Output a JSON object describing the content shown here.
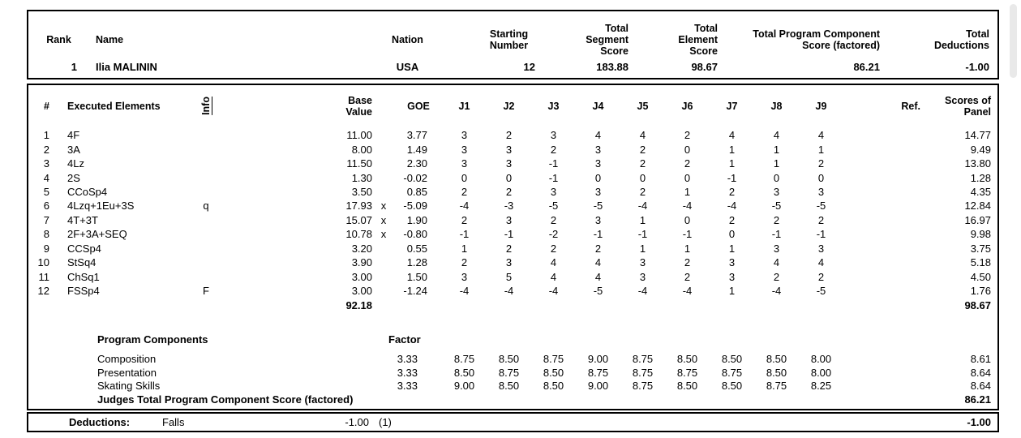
{
  "competitor_header": {
    "col_rank": "Rank",
    "col_name": "Name",
    "col_nation": "Nation",
    "col_starting_number": "Starting\nNumber",
    "col_total_segment_score": "Total\nSegment\nScore",
    "col_total_element_score": "Total\nElement\nScore",
    "col_total_program_component_score": "Total Program Component\nScore (factored)",
    "col_total_deductions": "Total Deductions",
    "rank": "1",
    "name": "Ilia MALININ",
    "nation": "USA",
    "starting_number": "12",
    "total_segment_score": "183.88",
    "total_element_score": "98.67",
    "total_program_component_score": "86.21",
    "total_deductions": "-1.00"
  },
  "elements_table": {
    "col_num": "#",
    "col_executed_elements": "Executed Elements",
    "col_info": "Info",
    "col_base_value": "Base\nValue",
    "col_goe": "GOE",
    "col_judges": [
      "J1",
      "J2",
      "J3",
      "J4",
      "J5",
      "J6",
      "J7",
      "J8",
      "J9"
    ],
    "col_ref": "Ref.",
    "col_scores_of_panel": "Scores of\nPanel",
    "rows": [
      {
        "num": "1",
        "name": "4F",
        "info": "",
        "base_value": "11.00",
        "x": "",
        "goe": "3.77",
        "judges": [
          "3",
          "2",
          "3",
          "4",
          "4",
          "2",
          "4",
          "4",
          "4"
        ],
        "ref": "",
        "panel": "14.77"
      },
      {
        "num": "2",
        "name": "3A",
        "info": "",
        "base_value": "8.00",
        "x": "",
        "goe": "1.49",
        "judges": [
          "3",
          "3",
          "2",
          "3",
          "2",
          "0",
          "1",
          "1",
          "1"
        ],
        "ref": "",
        "panel": "9.49"
      },
      {
        "num": "3",
        "name": "4Lz",
        "info": "",
        "base_value": "11.50",
        "x": "",
        "goe": "2.30",
        "judges": [
          "3",
          "3",
          "-1",
          "3",
          "2",
          "2",
          "1",
          "1",
          "2"
        ],
        "ref": "",
        "panel": "13.80"
      },
      {
        "num": "4",
        "name": "2S",
        "info": "",
        "base_value": "1.30",
        "x": "",
        "goe": "-0.02",
        "judges": [
          "0",
          "0",
          "-1",
          "0",
          "0",
          "0",
          "-1",
          "0",
          "0"
        ],
        "ref": "",
        "panel": "1.28"
      },
      {
        "num": "5",
        "name": "CCoSp4",
        "info": "",
        "base_value": "3.50",
        "x": "",
        "goe": "0.85",
        "judges": [
          "2",
          "2",
          "3",
          "3",
          "2",
          "1",
          "2",
          "3",
          "3"
        ],
        "ref": "",
        "panel": "4.35"
      },
      {
        "num": "6",
        "name": "4Lzq+1Eu+3S",
        "info": "q",
        "base_value": "17.93",
        "x": "x",
        "goe": "-5.09",
        "judges": [
          "-4",
          "-3",
          "-5",
          "-5",
          "-4",
          "-4",
          "-4",
          "-5",
          "-5"
        ],
        "ref": "",
        "panel": "12.84"
      },
      {
        "num": "7",
        "name": "4T+3T",
        "info": "",
        "base_value": "15.07",
        "x": "x",
        "goe": "1.90",
        "judges": [
          "2",
          "3",
          "2",
          "3",
          "1",
          "0",
          "2",
          "2",
          "2"
        ],
        "ref": "",
        "panel": "16.97"
      },
      {
        "num": "8",
        "name": "2F+3A+SEQ",
        "info": "",
        "base_value": "10.78",
        "x": "x",
        "goe": "-0.80",
        "judges": [
          "-1",
          "-1",
          "-2",
          "-1",
          "-1",
          "-1",
          "0",
          "-1",
          "-1"
        ],
        "ref": "",
        "panel": "9.98"
      },
      {
        "num": "9",
        "name": "CCSp4",
        "info": "",
        "base_value": "3.20",
        "x": "",
        "goe": "0.55",
        "judges": [
          "1",
          "2",
          "2",
          "2",
          "1",
          "1",
          "1",
          "3",
          "3"
        ],
        "ref": "",
        "panel": "3.75"
      },
      {
        "num": "10",
        "name": "StSq4",
        "info": "",
        "base_value": "3.90",
        "x": "",
        "goe": "1.28",
        "judges": [
          "2",
          "3",
          "4",
          "4",
          "3",
          "2",
          "3",
          "4",
          "4"
        ],
        "ref": "",
        "panel": "5.18"
      },
      {
        "num": "11",
        "name": "ChSq1",
        "info": "",
        "base_value": "3.00",
        "x": "",
        "goe": "1.50",
        "judges": [
          "3",
          "5",
          "4",
          "4",
          "3",
          "2",
          "3",
          "2",
          "2"
        ],
        "ref": "",
        "panel": "4.50"
      },
      {
        "num": "12",
        "name": "FSSp4",
        "info": "F",
        "base_value": "3.00",
        "x": "",
        "goe": "-1.24",
        "judges": [
          "-4",
          "-4",
          "-4",
          "-5",
          "-4",
          "-4",
          "1",
          "-4",
          "-5"
        ],
        "ref": "",
        "panel": "1.76"
      }
    ],
    "base_value_total": "92.18",
    "panel_total": "98.67"
  },
  "program_components": {
    "title": "Program Components",
    "factor_label": "Factor",
    "rows": [
      {
        "name": "Composition",
        "factor": "3.33",
        "judges": [
          "8.75",
          "8.50",
          "8.75",
          "9.00",
          "8.75",
          "8.50",
          "8.50",
          "8.50",
          "8.00"
        ],
        "panel": "8.61"
      },
      {
        "name": "Presentation",
        "factor": "3.33",
        "judges": [
          "8.50",
          "8.75",
          "8.50",
          "8.75",
          "8.75",
          "8.75",
          "8.75",
          "8.50",
          "8.00"
        ],
        "panel": "8.64"
      },
      {
        "name": "Skating Skills",
        "factor": "3.33",
        "judges": [
          "9.00",
          "8.50",
          "8.50",
          "9.00",
          "8.75",
          "8.50",
          "8.50",
          "8.75",
          "8.25"
        ],
        "panel": "8.64"
      }
    ],
    "total_label": "Judges Total Program Component Score (factored)",
    "total": "86.21"
  },
  "deductions": {
    "label": "Deductions:",
    "item": "Falls",
    "value": "-1.00",
    "count": "(1)",
    "total": "-1.00"
  },
  "colors": {
    "border": "#000000",
    "scrollbar_thumb": "#e9e9e9"
  }
}
